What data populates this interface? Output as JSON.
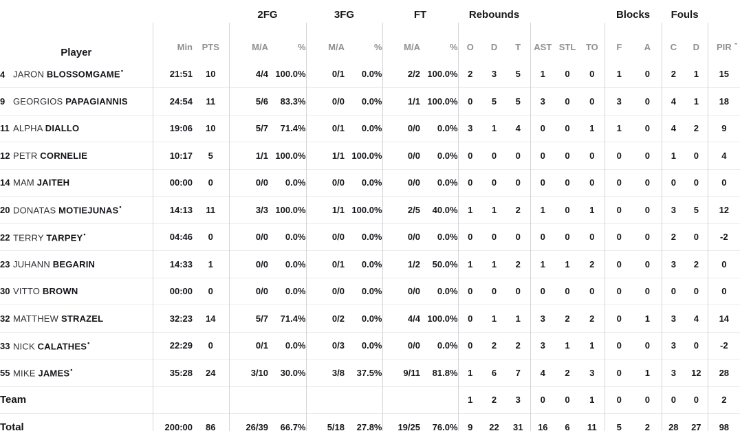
{
  "table": {
    "player_col_label": "Player",
    "groups": [
      "2FG",
      "3FG",
      "FT",
      "Rebounds",
      "Blocks",
      "Fouls"
    ],
    "sub_headers": [
      "Min",
      "PTS",
      "M/A",
      "%",
      "M/A",
      "%",
      "M/A",
      "%",
      "O",
      "D",
      "T",
      "AST",
      "STL",
      "TO",
      "F",
      "A",
      "C",
      "D",
      "PIR"
    ],
    "starter_mark": "•",
    "truncated_indicator": "-",
    "colors": {
      "text_dark": "#17171c",
      "text_gray": "#8f8f94",
      "line_vertical": "#d4d4d6",
      "line_horizontal": "#ebebed"
    },
    "rows": [
      {
        "number": "4",
        "first": "JARON",
        "last": "BLOSSOMGAME",
        "starter": true,
        "stats": {
          "min": "21:51",
          "pts": "10",
          "fg2_ma": "4/4",
          "fg2_pct": "100.0%",
          "fg3_ma": "0/1",
          "fg3_pct": "0.0%",
          "ft_ma": "2/2",
          "ft_pct": "100.0%",
          "reb_o": "2",
          "reb_d": "3",
          "reb_t": "5",
          "ast": "1",
          "stl": "0",
          "to": "0",
          "blk_f": "1",
          "blk_a": "0",
          "foul_c": "2",
          "foul_d": "1",
          "pir": "15"
        }
      },
      {
        "number": "9",
        "first": "GEORGIOS",
        "last": "PAPAGIANNIS",
        "starter": false,
        "stats": {
          "min": "24:54",
          "pts": "11",
          "fg2_ma": "5/6",
          "fg2_pct": "83.3%",
          "fg3_ma": "0/0",
          "fg3_pct": "0.0%",
          "ft_ma": "1/1",
          "ft_pct": "100.0%",
          "reb_o": "0",
          "reb_d": "5",
          "reb_t": "5",
          "ast": "3",
          "stl": "0",
          "to": "0",
          "blk_f": "3",
          "blk_a": "0",
          "foul_c": "4",
          "foul_d": "1",
          "pir": "18"
        }
      },
      {
        "number": "11",
        "first": "ALPHA",
        "last": "DIALLO",
        "starter": false,
        "stats": {
          "min": "19:06",
          "pts": "10",
          "fg2_ma": "5/7",
          "fg2_pct": "71.4%",
          "fg3_ma": "0/1",
          "fg3_pct": "0.0%",
          "ft_ma": "0/0",
          "ft_pct": "0.0%",
          "reb_o": "3",
          "reb_d": "1",
          "reb_t": "4",
          "ast": "0",
          "stl": "0",
          "to": "1",
          "blk_f": "1",
          "blk_a": "0",
          "foul_c": "4",
          "foul_d": "2",
          "pir": "9"
        }
      },
      {
        "number": "12",
        "first": "PETR",
        "last": "CORNELIE",
        "starter": false,
        "stats": {
          "min": "10:17",
          "pts": "5",
          "fg2_ma": "1/1",
          "fg2_pct": "100.0%",
          "fg3_ma": "1/1",
          "fg3_pct": "100.0%",
          "ft_ma": "0/0",
          "ft_pct": "0.0%",
          "reb_o": "0",
          "reb_d": "0",
          "reb_t": "0",
          "ast": "0",
          "stl": "0",
          "to": "0",
          "blk_f": "0",
          "blk_a": "0",
          "foul_c": "1",
          "foul_d": "0",
          "pir": "4"
        }
      },
      {
        "number": "14",
        "first": "MAM",
        "last": "JAITEH",
        "starter": false,
        "stats": {
          "min": "00:00",
          "pts": "0",
          "fg2_ma": "0/0",
          "fg2_pct": "0.0%",
          "fg3_ma": "0/0",
          "fg3_pct": "0.0%",
          "ft_ma": "0/0",
          "ft_pct": "0.0%",
          "reb_o": "0",
          "reb_d": "0",
          "reb_t": "0",
          "ast": "0",
          "stl": "0",
          "to": "0",
          "blk_f": "0",
          "blk_a": "0",
          "foul_c": "0",
          "foul_d": "0",
          "pir": "0"
        }
      },
      {
        "number": "20",
        "first": "DONATAS",
        "last": "MOTIEJUNAS",
        "starter": true,
        "stats": {
          "min": "14:13",
          "pts": "11",
          "fg2_ma": "3/3",
          "fg2_pct": "100.0%",
          "fg3_ma": "1/1",
          "fg3_pct": "100.0%",
          "ft_ma": "2/5",
          "ft_pct": "40.0%",
          "reb_o": "1",
          "reb_d": "1",
          "reb_t": "2",
          "ast": "1",
          "stl": "0",
          "to": "1",
          "blk_f": "0",
          "blk_a": "0",
          "foul_c": "3",
          "foul_d": "5",
          "pir": "12"
        }
      },
      {
        "number": "22",
        "first": "TERRY",
        "last": "TARPEY",
        "starter": true,
        "stats": {
          "min": "04:46",
          "pts": "0",
          "fg2_ma": "0/0",
          "fg2_pct": "0.0%",
          "fg3_ma": "0/0",
          "fg3_pct": "0.0%",
          "ft_ma": "0/0",
          "ft_pct": "0.0%",
          "reb_o": "0",
          "reb_d": "0",
          "reb_t": "0",
          "ast": "0",
          "stl": "0",
          "to": "0",
          "blk_f": "0",
          "blk_a": "0",
          "foul_c": "2",
          "foul_d": "0",
          "pir": "-2"
        }
      },
      {
        "number": "23",
        "first": "JUHANN",
        "last": "BEGARIN",
        "starter": false,
        "stats": {
          "min": "14:33",
          "pts": "1",
          "fg2_ma": "0/0",
          "fg2_pct": "0.0%",
          "fg3_ma": "0/1",
          "fg3_pct": "0.0%",
          "ft_ma": "1/2",
          "ft_pct": "50.0%",
          "reb_o": "1",
          "reb_d": "1",
          "reb_t": "2",
          "ast": "1",
          "stl": "1",
          "to": "2",
          "blk_f": "0",
          "blk_a": "0",
          "foul_c": "3",
          "foul_d": "2",
          "pir": "0"
        }
      },
      {
        "number": "30",
        "first": "VITTO",
        "last": "BROWN",
        "starter": false,
        "stats": {
          "min": "00:00",
          "pts": "0",
          "fg2_ma": "0/0",
          "fg2_pct": "0.0%",
          "fg3_ma": "0/0",
          "fg3_pct": "0.0%",
          "ft_ma": "0/0",
          "ft_pct": "0.0%",
          "reb_o": "0",
          "reb_d": "0",
          "reb_t": "0",
          "ast": "0",
          "stl": "0",
          "to": "0",
          "blk_f": "0",
          "blk_a": "0",
          "foul_c": "0",
          "foul_d": "0",
          "pir": "0"
        }
      },
      {
        "number": "32",
        "first": "MATTHEW",
        "last": "STRAZEL",
        "starter": false,
        "stats": {
          "min": "32:23",
          "pts": "14",
          "fg2_ma": "5/7",
          "fg2_pct": "71.4%",
          "fg3_ma": "0/2",
          "fg3_pct": "0.0%",
          "ft_ma": "4/4",
          "ft_pct": "100.0%",
          "reb_o": "0",
          "reb_d": "1",
          "reb_t": "1",
          "ast": "3",
          "stl": "2",
          "to": "2",
          "blk_f": "0",
          "blk_a": "1",
          "foul_c": "3",
          "foul_d": "4",
          "pir": "14"
        }
      },
      {
        "number": "33",
        "first": "NICK",
        "last": "CALATHES",
        "starter": true,
        "stats": {
          "min": "22:29",
          "pts": "0",
          "fg2_ma": "0/1",
          "fg2_pct": "0.0%",
          "fg3_ma": "0/3",
          "fg3_pct": "0.0%",
          "ft_ma": "0/0",
          "ft_pct": "0.0%",
          "reb_o": "0",
          "reb_d": "2",
          "reb_t": "2",
          "ast": "3",
          "stl": "1",
          "to": "1",
          "blk_f": "0",
          "blk_a": "0",
          "foul_c": "3",
          "foul_d": "0",
          "pir": "-2"
        }
      },
      {
        "number": "55",
        "first": "MIKE",
        "last": "JAMES",
        "starter": true,
        "stats": {
          "min": "35:28",
          "pts": "24",
          "fg2_ma": "3/10",
          "fg2_pct": "30.0%",
          "fg3_ma": "3/8",
          "fg3_pct": "37.5%",
          "ft_ma": "9/11",
          "ft_pct": "81.8%",
          "reb_o": "1",
          "reb_d": "6",
          "reb_t": "7",
          "ast": "4",
          "stl": "2",
          "to": "3",
          "blk_f": "0",
          "blk_a": "1",
          "foul_c": "3",
          "foul_d": "12",
          "pir": "28"
        }
      },
      {
        "label": "Team",
        "stats": {
          "min": "",
          "pts": "",
          "fg2_ma": "",
          "fg2_pct": "",
          "fg3_ma": "",
          "fg3_pct": "",
          "ft_ma": "",
          "ft_pct": "",
          "reb_o": "1",
          "reb_d": "2",
          "reb_t": "3",
          "ast": "0",
          "stl": "0",
          "to": "1",
          "blk_f": "0",
          "blk_a": "0",
          "foul_c": "0",
          "foul_d": "0",
          "pir": "2"
        }
      },
      {
        "label": "Total",
        "stats": {
          "min": "200:00",
          "pts": "86",
          "fg2_ma": "26/39",
          "fg2_pct": "66.7%",
          "fg3_ma": "5/18",
          "fg3_pct": "27.8%",
          "ft_ma": "19/25",
          "ft_pct": "76.0%",
          "reb_o": "9",
          "reb_d": "22",
          "reb_t": "31",
          "ast": "16",
          "stl": "6",
          "to": "11",
          "blk_f": "5",
          "blk_a": "2",
          "foul_c": "28",
          "foul_d": "27",
          "pir": "98"
        }
      }
    ]
  }
}
